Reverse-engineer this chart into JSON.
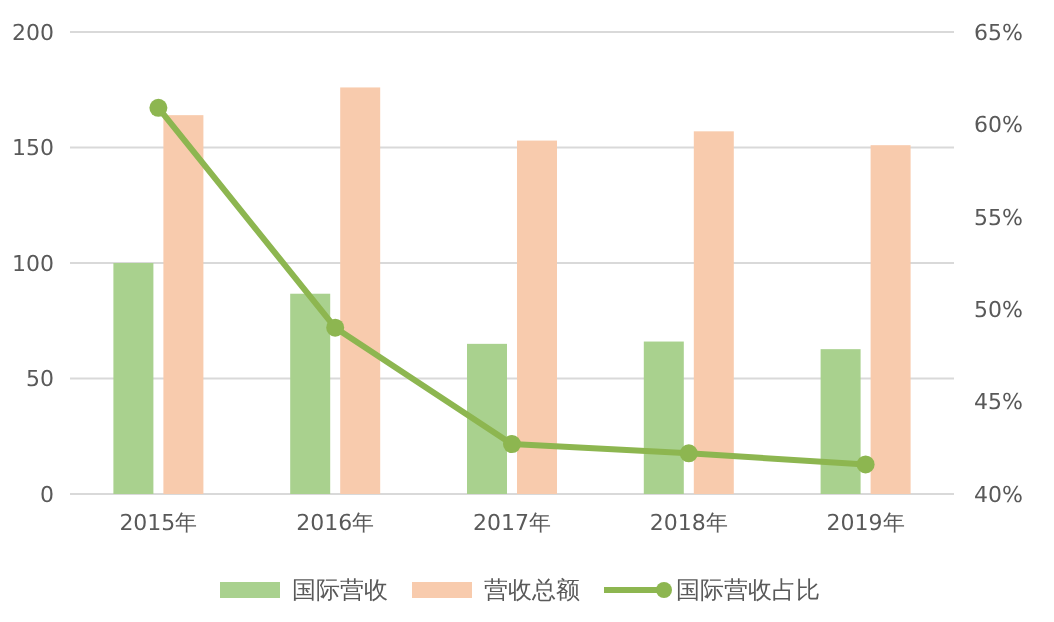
{
  "chart_data": {
    "type": "bar",
    "categories": [
      "2015年",
      "2016年",
      "2017年",
      "2018年",
      "2019年"
    ],
    "series": [
      {
        "name": "国际营收",
        "color": "#a9d18e",
        "values": [
          100,
          86.7,
          65,
          66,
          62.7
        ]
      },
      {
        "name": "营收总额",
        "color": "#f8cbad",
        "values": [
          164,
          176,
          153,
          157,
          151
        ]
      },
      {
        "name": "国际营收占比",
        "type": "line",
        "axis": "y2",
        "color": "#8db650",
        "values": [
          60.9,
          49,
          42.7,
          42.2,
          41.6
        ]
      }
    ],
    "ylim": [
      0,
      200
    ],
    "yticks": [
      0,
      50,
      100,
      150,
      200
    ],
    "y2lim": [
      40,
      65
    ],
    "y2ticks": [
      {
        "value": 40,
        "label": "40%"
      },
      {
        "value": 45,
        "label": "45%"
      },
      {
        "value": 50,
        "label": "50%"
      },
      {
        "value": 55,
        "label": "55%"
      },
      {
        "value": 60,
        "label": "60%"
      },
      {
        "value": 65,
        "label": "65%"
      }
    ],
    "grid": "y",
    "legend": "bottom",
    "marker": "circle"
  }
}
